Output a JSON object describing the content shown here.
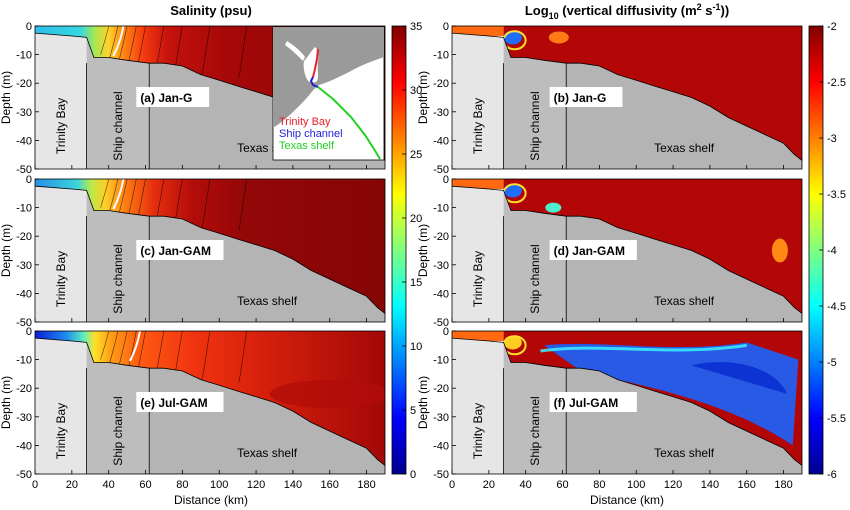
{
  "titles": {
    "salinity": "Salinity (psu)",
    "diffusivity_pre": "Log",
    "diffusivity_sub": "10",
    "diffusivity_post": " (vertical diffusivity (m",
    "diffusivity_sup1": "2",
    "diffusivity_mid": " s",
    "diffusivity_sup2": "-1",
    "diffusivity_end": "))"
  },
  "axes": {
    "ylabel": "Depth (m)",
    "xlabel": "Distance (km)",
    "x_ticks": [
      0,
      20,
      40,
      60,
      80,
      100,
      120,
      140,
      160,
      180
    ],
    "y_ticks": [
      0,
      -10,
      -20,
      -30,
      -40,
      -50
    ],
    "xlim": [
      0,
      190
    ],
    "ylim": [
      -50,
      0
    ]
  },
  "region_labels": {
    "trinity_bay": "Trinity Bay",
    "ship_channel": "Ship channel",
    "texas_shelf": "Texas shelf"
  },
  "panel_labels": [
    "(a) Jan-G",
    "(b) Jan-G",
    "(c) Jan-GAM",
    "(d) Jan-GAM",
    "(e) Jul-GAM",
    "(f) Jul-GAM"
  ],
  "inset_legend": {
    "entries": [
      {
        "label": "Trinity Bay",
        "color": "#e8202a"
      },
      {
        "label": "Ship channel",
        "color": "#1f1fd8"
      },
      {
        "label": "Texas shelf",
        "color": "#22d122"
      }
    ]
  },
  "colorbars": {
    "salinity": {
      "ticks": [
        35,
        30,
        25,
        20,
        15,
        10,
        5,
        0
      ],
      "range": [
        0,
        35
      ]
    },
    "diffusivity": {
      "ticks": [
        "-2",
        "-2.5",
        "-3",
        "-3.5",
        "-4",
        "-4.5",
        "-5",
        "-5.5",
        "-6"
      ],
      "range": [
        -6,
        -2
      ]
    }
  },
  "chart_data": [
    {
      "type": "heatmap",
      "title": "Salinity (psu)",
      "xlabel": "Distance (km)",
      "ylabel": "Depth (m)",
      "xlim": [
        0,
        190
      ],
      "ylim": [
        -50,
        0
      ],
      "colorbar_range": [
        0,
        35
      ],
      "panels": [
        "(a) Jan-G",
        "(c) Jan-GAM",
        "(e) Jul-GAM"
      ],
      "regions": [
        {
          "name": "Trinity Bay",
          "x_range": [
            0,
            28
          ]
        },
        {
          "name": "Ship channel",
          "x_range": [
            28,
            62
          ]
        },
        {
          "name": "Texas shelf",
          "x_range": [
            62,
            190
          ]
        }
      ],
      "bathymetry_depth": {
        "x": [
          0,
          20,
          28,
          32,
          40,
          50,
          62,
          70,
          80,
          90,
          100,
          110,
          120,
          130,
          140,
          150,
          160,
          170,
          180,
          186,
          190
        ],
        "depth": [
          -2.5,
          -3.5,
          -4,
          -11,
          -11,
          -12,
          -13,
          -13,
          -14,
          -17,
          -19,
          -21,
          -23,
          -25,
          -28,
          -32,
          -35,
          -38,
          -41,
          -45,
          -47
        ]
      }
    },
    {
      "type": "heatmap",
      "title": "Log10 (vertical diffusivity (m2 s-1))",
      "xlabel": "Distance (km)",
      "ylabel": "Depth (m)",
      "xlim": [
        0,
        190
      ],
      "ylim": [
        -50,
        0
      ],
      "colorbar_range": [
        -6,
        -2
      ],
      "panels": [
        "(b) Jan-G",
        "(d) Jan-GAM",
        "(f) Jul-GAM"
      ]
    }
  ]
}
